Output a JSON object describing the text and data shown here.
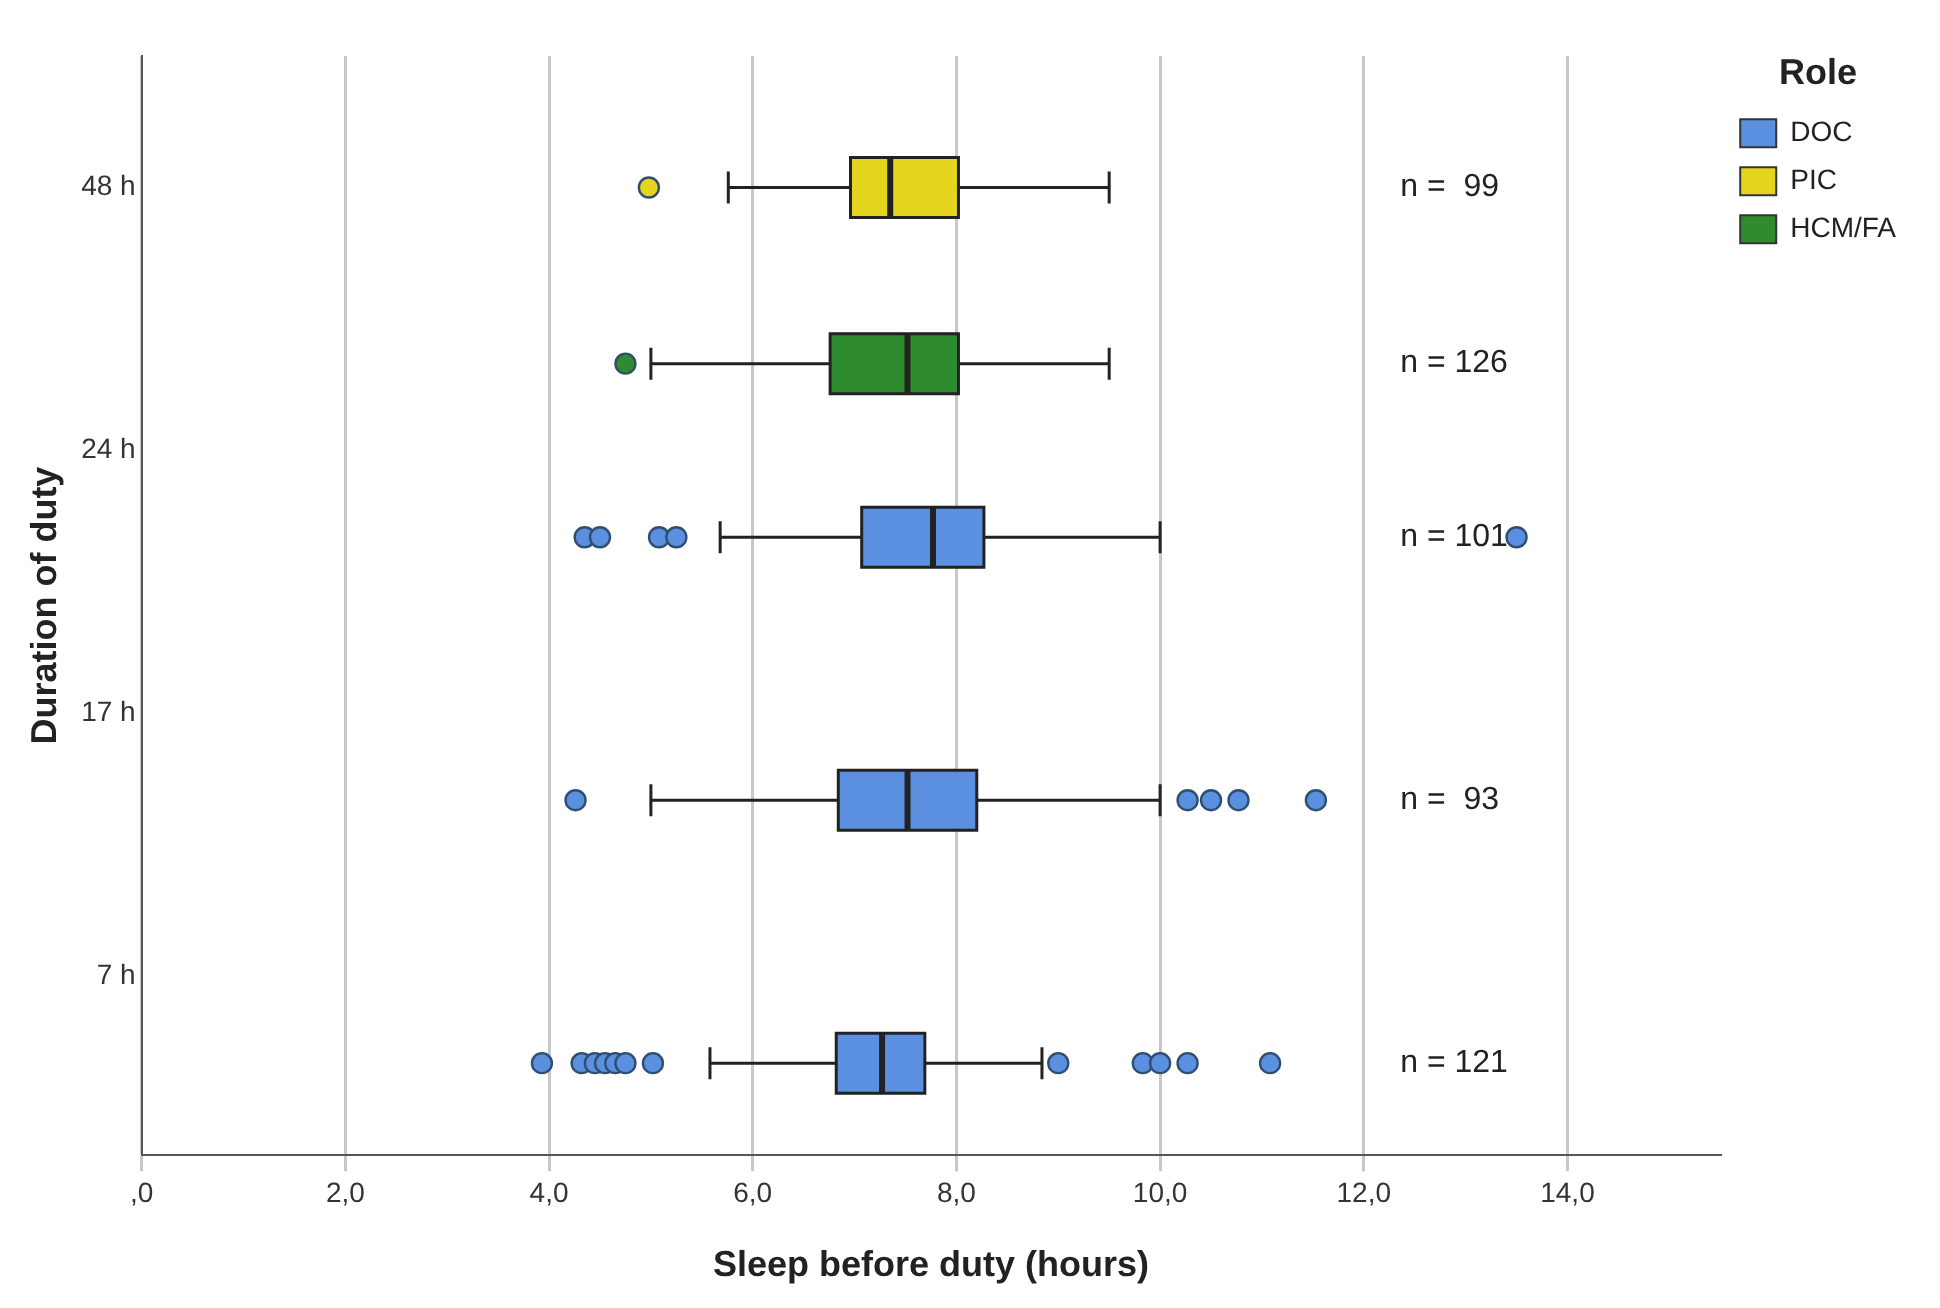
{
  "chart_data": {
    "type": "box",
    "orientation": "horizontal",
    "xlabel": "Sleep before duty (hours)",
    "ylabel": "Duration of duty",
    "legend_title": "Role",
    "legend": "top right",
    "grid": "x",
    "categories": [
      "48 h",
      "24 h",
      "17 h",
      "7 h"
    ],
    "xlim": [
      0,
      15.5
    ],
    "xticks": [
      {
        "value": 0,
        "label": ",0"
      },
      {
        "value": 2,
        "label": "2,0"
      },
      {
        "value": 4,
        "label": "4,0"
      },
      {
        "value": 6,
        "label": "6,0"
      },
      {
        "value": 8,
        "label": "8,0"
      },
      {
        "value": 10,
        "label": "10,0"
      },
      {
        "value": 12,
        "label": "12,0"
      },
      {
        "value": 14,
        "label": "14,0"
      }
    ],
    "series": [
      {
        "name": "DOC",
        "color": "#5b8fe0",
        "boxes": [
          null,
          {
            "low": 5.68,
            "q1": 7.07,
            "median": 7.77,
            "q3": 8.27,
            "high": 10.0,
            "outliers": [
              4.35,
              4.5,
              5.08,
              5.25,
              13.5
            ]
          },
          {
            "low": 5.0,
            "q1": 6.84,
            "median": 7.52,
            "q3": 8.2,
            "high": 10.0,
            "outliers": [
              4.26,
              10.27,
              10.5,
              10.77,
              11.53
            ]
          },
          {
            "low": 5.58,
            "q1": 6.82,
            "median": 7.27,
            "q3": 7.69,
            "high": 8.84,
            "outliers": [
              3.93,
              4.32,
              4.45,
              4.55,
              4.65,
              4.75,
              5.02,
              9.0,
              9.83,
              10.0,
              10.27,
              11.08
            ]
          }
        ]
      },
      {
        "name": "PIC",
        "color": "#e6d51e",
        "boxes": [
          {
            "low": 5.76,
            "q1": 6.96,
            "median": 7.35,
            "q3": 8.02,
            "high": 9.5,
            "outliers": [
              4.98
            ]
          },
          null,
          null,
          null
        ]
      },
      {
        "name": "HCM/FA",
        "color": "#2e8b2e",
        "boxes": [
          null,
          {
            "low": 5.0,
            "q1": 6.76,
            "median": 7.52,
            "q3": 8.02,
            "high": 9.5,
            "outliers": [
              4.75
            ]
          },
          null,
          null
        ]
      }
    ],
    "annotations": [
      "n =  99",
      "n = 126",
      "n = 101",
      "n =  93",
      "n = 121"
    ]
  }
}
